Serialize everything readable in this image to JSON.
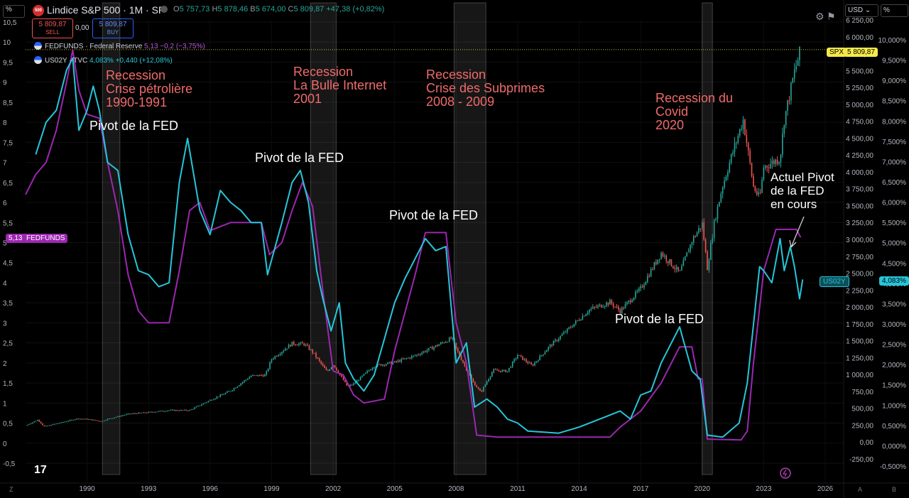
{
  "header": {
    "left_scale_label": "%",
    "symbol_logo": "500",
    "symbol_title": "Lindice S&P 500 · 1M · SP",
    "ohlc": {
      "o_label": "O",
      "o": "5 757,73",
      "h_label": "H",
      "h": "5 878,46",
      "b_label": "B",
      "b": "5 674,00",
      "c_label": "C",
      "c": "5 809,87",
      "change": "+47,38 (+0,82%)"
    },
    "sell": {
      "price": "5 809,87",
      "label": "SELL"
    },
    "spread": "0,00",
    "buy": {
      "price": "5 809,87",
      "label": "BUY"
    },
    "currency": "USD",
    "right_scale_label": "%"
  },
  "legend": [
    {
      "name": "FEDFUNDS · Federal Reserve",
      "value": "5,13",
      "change": "−0,2 (−3,75%)",
      "color": "#9c27b0"
    },
    {
      "name": "US02Y · TVC",
      "value": "4,083%",
      "change": "+0,440 (+12,08%)",
      "color": "#26c6da"
    }
  ],
  "price_tags": {
    "fedfunds_value": "5,13",
    "fedfunds_label": "FEDFUNDS",
    "spx_label": "SPX",
    "spx_value": "5 809,87",
    "us02y_label": "US02Y",
    "us02y_value": "4,083%"
  },
  "annotations": {
    "recession_1": "Recession\nCrise pétrolière\n1990-1991",
    "recession_2": "Recession\nLa Bulle Internet\n2001",
    "recession_3": "Recession\nCrise des Subprimes\n2008 - 2009",
    "recession_4": "Recession du\nCovid\n2020",
    "pivot_1": "Pivot de la FED",
    "pivot_2": "Pivot de la FED",
    "pivot_3": "Pivot de la FED",
    "pivot_4": "Pivot de la FED",
    "current_pivot": "Actuel Pivot\nde la FED\nen cours"
  },
  "footer": {
    "left_label": "Z",
    "right_label_a": "A",
    "right_label_b": "B"
  },
  "colors": {
    "fedfunds": "#9c27b0",
    "us02y": "#26c6da",
    "spx_up": "#26a69a",
    "spx_down": "#ef5350",
    "recession_text": "#f06a6a",
    "spx_tag": "#f5e94a"
  },
  "chart_data": {
    "type": "line",
    "title": "Lindice S&P 500 · 1M · SP",
    "x_range": [
      1987.0,
      2026.9
    ],
    "x_ticks": [
      "1990",
      "1993",
      "1996",
      "1999",
      "2002",
      "2005",
      "2008",
      "2011",
      "2014",
      "2017",
      "2020",
      "2023",
      "2026"
    ],
    "left_axis": {
      "range": [
        -0.6,
        10.6
      ],
      "ticks": [
        "10,5",
        "10",
        "9,5",
        "9",
        "8,5",
        "8",
        "7,5",
        "7",
        "6,5",
        "6",
        "5,5",
        "5",
        "4,5",
        "4",
        "3,5",
        "3",
        "2,5",
        "2",
        "1,5",
        "1",
        "0,5",
        "0",
        "-0,5"
      ]
    },
    "spx_axis": {
      "range": [
        -350,
        6500
      ],
      "ticks": [
        "6 250,00",
        "6 000,00",
        "5 750,00",
        "5 500,00",
        "5 250,00",
        "5 000,00",
        "4 750,00",
        "4 500,00",
        "4 250,00",
        "4 000,00",
        "3 750,00",
        "3 500,00",
        "3 250,00",
        "3 000,00",
        "2 750,00",
        "2 500,00",
        "2 250,00",
        "2 000,00",
        "1 750,00",
        "1 500,00",
        "1 250,00",
        "1 000,00",
        "750,00",
        "500,00",
        "250,00",
        "0,00",
        "-250,00"
      ]
    },
    "pct_axis": {
      "ticks": [
        "10,000%",
        "9,500%",
        "9,000%",
        "8,500%",
        "8,000%",
        "7,500%",
        "7,000%",
        "6,500%",
        "6,000%",
        "5,500%",
        "5,000%",
        "4,500%",
        "4,000%",
        "3,500%",
        "3,000%",
        "2,500%",
        "2,000%",
        "1,500%",
        "1,000%",
        "0,500%",
        "0,000%",
        "-0,500%"
      ]
    },
    "recessions": [
      {
        "label": "1990-1991",
        "start": 1990.75,
        "end": 1991.6
      },
      {
        "label": "2001",
        "start": 2000.9,
        "end": 2002.15
      },
      {
        "label": "2008 - 2009",
        "start": 2007.9,
        "end": 2009.45
      },
      {
        "label": "2020",
        "start": 2020.0,
        "end": 2020.5
      }
    ],
    "series": [
      {
        "name": "FEDFUNDS",
        "color": "#9c27b0",
        "points": [
          [
            1987.0,
            6.2
          ],
          [
            1987.5,
            6.7
          ],
          [
            1988.0,
            7.0
          ],
          [
            1988.5,
            7.8
          ],
          [
            1989.0,
            9.0
          ],
          [
            1989.3,
            9.8
          ],
          [
            1989.6,
            8.8
          ],
          [
            1990.0,
            8.2
          ],
          [
            1990.6,
            8.1
          ],
          [
            1991.0,
            7.0
          ],
          [
            1991.5,
            5.8
          ],
          [
            1992.0,
            4.2
          ],
          [
            1992.5,
            3.3
          ],
          [
            1993.0,
            3.0
          ],
          [
            1994.0,
            3.0
          ],
          [
            1994.5,
            4.3
          ],
          [
            1995.0,
            5.8
          ],
          [
            1995.5,
            6.0
          ],
          [
            1996.0,
            5.3
          ],
          [
            1997.0,
            5.5
          ],
          [
            1998.5,
            5.5
          ],
          [
            1998.9,
            4.7
          ],
          [
            1999.5,
            5.0
          ],
          [
            2000.0,
            5.8
          ],
          [
            2000.5,
            6.5
          ],
          [
            2001.0,
            5.9
          ],
          [
            2001.5,
            3.8
          ],
          [
            2002.0,
            1.8
          ],
          [
            2002.5,
            1.7
          ],
          [
            2003.0,
            1.2
          ],
          [
            2003.5,
            1.0
          ],
          [
            2004.5,
            1.1
          ],
          [
            2005.0,
            2.3
          ],
          [
            2006.0,
            4.2
          ],
          [
            2006.5,
            5.25
          ],
          [
            2007.5,
            5.25
          ],
          [
            2008.0,
            3.0
          ],
          [
            2008.5,
            2.0
          ],
          [
            2009.0,
            0.2
          ],
          [
            2010.0,
            0.15
          ],
          [
            2015.5,
            0.15
          ],
          [
            2016.0,
            0.4
          ],
          [
            2017.0,
            0.8
          ],
          [
            2018.0,
            1.5
          ],
          [
            2018.9,
            2.4
          ],
          [
            2019.5,
            2.4
          ],
          [
            2019.8,
            1.6
          ],
          [
            2020.0,
            1.6
          ],
          [
            2020.25,
            0.1
          ],
          [
            2021.9,
            0.08
          ],
          [
            2022.2,
            0.3
          ],
          [
            2022.5,
            2.0
          ],
          [
            2023.0,
            4.3
          ],
          [
            2023.6,
            5.33
          ],
          [
            2024.6,
            5.33
          ],
          [
            2024.8,
            5.13
          ]
        ]
      },
      {
        "name": "US02Y",
        "color": "#26c6da",
        "points": [
          [
            1987.5,
            7.2
          ],
          [
            1988.0,
            8.0
          ],
          [
            1988.5,
            8.3
          ],
          [
            1989.0,
            9.3
          ],
          [
            1989.3,
            9.6
          ],
          [
            1989.6,
            7.8
          ],
          [
            1990.0,
            8.3
          ],
          [
            1990.3,
            8.9
          ],
          [
            1990.6,
            8.3
          ],
          [
            1991.0,
            7.0
          ],
          [
            1991.5,
            6.8
          ],
          [
            1992.0,
            5.2
          ],
          [
            1992.5,
            4.3
          ],
          [
            1993.0,
            4.2
          ],
          [
            1993.5,
            3.9
          ],
          [
            1994.0,
            4.0
          ],
          [
            1994.5,
            6.5
          ],
          [
            1994.9,
            7.6
          ],
          [
            1995.5,
            5.8
          ],
          [
            1996.0,
            5.2
          ],
          [
            1996.5,
            6.3
          ],
          [
            1997.0,
            6.0
          ],
          [
            1997.5,
            5.8
          ],
          [
            1998.0,
            5.5
          ],
          [
            1998.5,
            5.5
          ],
          [
            1998.8,
            4.2
          ],
          [
            1999.5,
            5.5
          ],
          [
            2000.0,
            6.5
          ],
          [
            2000.4,
            6.8
          ],
          [
            2000.8,
            6.0
          ],
          [
            2001.2,
            4.3
          ],
          [
            2001.5,
            3.6
          ],
          [
            2001.9,
            2.8
          ],
          [
            2002.3,
            3.5
          ],
          [
            2002.6,
            2.0
          ],
          [
            2003.0,
            1.6
          ],
          [
            2003.5,
            1.3
          ],
          [
            2004.0,
            1.7
          ],
          [
            2004.5,
            2.6
          ],
          [
            2005.0,
            3.5
          ],
          [
            2005.5,
            4.1
          ],
          [
            2006.0,
            4.6
          ],
          [
            2006.5,
            5.1
          ],
          [
            2007.0,
            4.8
          ],
          [
            2007.5,
            4.9
          ],
          [
            2008.0,
            2.0
          ],
          [
            2008.5,
            2.5
          ],
          [
            2008.9,
            0.9
          ],
          [
            2009.5,
            1.1
          ],
          [
            2010.0,
            0.9
          ],
          [
            2010.5,
            0.6
          ],
          [
            2011.0,
            0.5
          ],
          [
            2011.5,
            0.3
          ],
          [
            2013.0,
            0.25
          ],
          [
            2014.0,
            0.4
          ],
          [
            2015.0,
            0.6
          ],
          [
            2016.0,
            0.8
          ],
          [
            2016.5,
            0.6
          ],
          [
            2017.0,
            1.2
          ],
          [
            2017.5,
            1.3
          ],
          [
            2018.0,
            2.0
          ],
          [
            2018.9,
            2.9
          ],
          [
            2019.5,
            1.8
          ],
          [
            2019.9,
            1.6
          ],
          [
            2020.25,
            0.2
          ],
          [
            2021.0,
            0.15
          ],
          [
            2021.8,
            0.5
          ],
          [
            2022.2,
            1.5
          ],
          [
            2022.8,
            4.4
          ],
          [
            2023.0,
            4.3
          ],
          [
            2023.4,
            4.0
          ],
          [
            2023.8,
            5.1
          ],
          [
            2024.0,
            4.3
          ],
          [
            2024.3,
            4.9
          ],
          [
            2024.5,
            4.4
          ],
          [
            2024.75,
            3.6
          ],
          [
            2024.9,
            4.08
          ]
        ]
      },
      {
        "name": "SPX",
        "color": "#26a69a",
        "points": [
          [
            1987.0,
            242
          ],
          [
            1987.6,
            329
          ],
          [
            1987.9,
            230
          ],
          [
            1988.5,
            272
          ],
          [
            1989.5,
            345
          ],
          [
            1990.0,
            340
          ],
          [
            1990.7,
            306
          ],
          [
            1991.0,
            340
          ],
          [
            1992.0,
            415
          ],
          [
            1993.0,
            440
          ],
          [
            1994.0,
            470
          ],
          [
            1995.0,
            470
          ],
          [
            1996.0,
            620
          ],
          [
            1997.0,
            760
          ],
          [
            1998.0,
            980
          ],
          [
            1998.7,
            990
          ],
          [
            1999.0,
            1230
          ],
          [
            2000.0,
            1460
          ],
          [
            2000.6,
            1450
          ],
          [
            2001.0,
            1330
          ],
          [
            2001.7,
            1040
          ],
          [
            2002.0,
            1150
          ],
          [
            2002.7,
            820
          ],
          [
            2003.0,
            860
          ],
          [
            2004.0,
            1130
          ],
          [
            2005.0,
            1180
          ],
          [
            2006.0,
            1280
          ],
          [
            2007.0,
            1420
          ],
          [
            2007.8,
            1540
          ],
          [
            2008.0,
            1380
          ],
          [
            2008.8,
            900
          ],
          [
            2009.2,
            735
          ],
          [
            2009.8,
            1060
          ],
          [
            2010.5,
            1050
          ],
          [
            2011.0,
            1290
          ],
          [
            2011.7,
            1130
          ],
          [
            2012.5,
            1400
          ],
          [
            2013.5,
            1680
          ],
          [
            2014.5,
            1960
          ],
          [
            2015.5,
            2070
          ],
          [
            2016.0,
            1940
          ],
          [
            2017.0,
            2270
          ],
          [
            2018.0,
            2800
          ],
          [
            2018.9,
            2500
          ],
          [
            2019.5,
            2980
          ],
          [
            2020.0,
            3230
          ],
          [
            2020.25,
            2580
          ],
          [
            2020.6,
            3270
          ],
          [
            2021.0,
            3800
          ],
          [
            2021.5,
            4300
          ],
          [
            2022.0,
            4770
          ],
          [
            2022.5,
            3780
          ],
          [
            2022.8,
            3600
          ],
          [
            2023.0,
            4070
          ],
          [
            2023.8,
            4200
          ],
          [
            2024.0,
            4770
          ],
          [
            2024.5,
            5480
          ],
          [
            2024.8,
            5810
          ]
        ]
      }
    ]
  }
}
